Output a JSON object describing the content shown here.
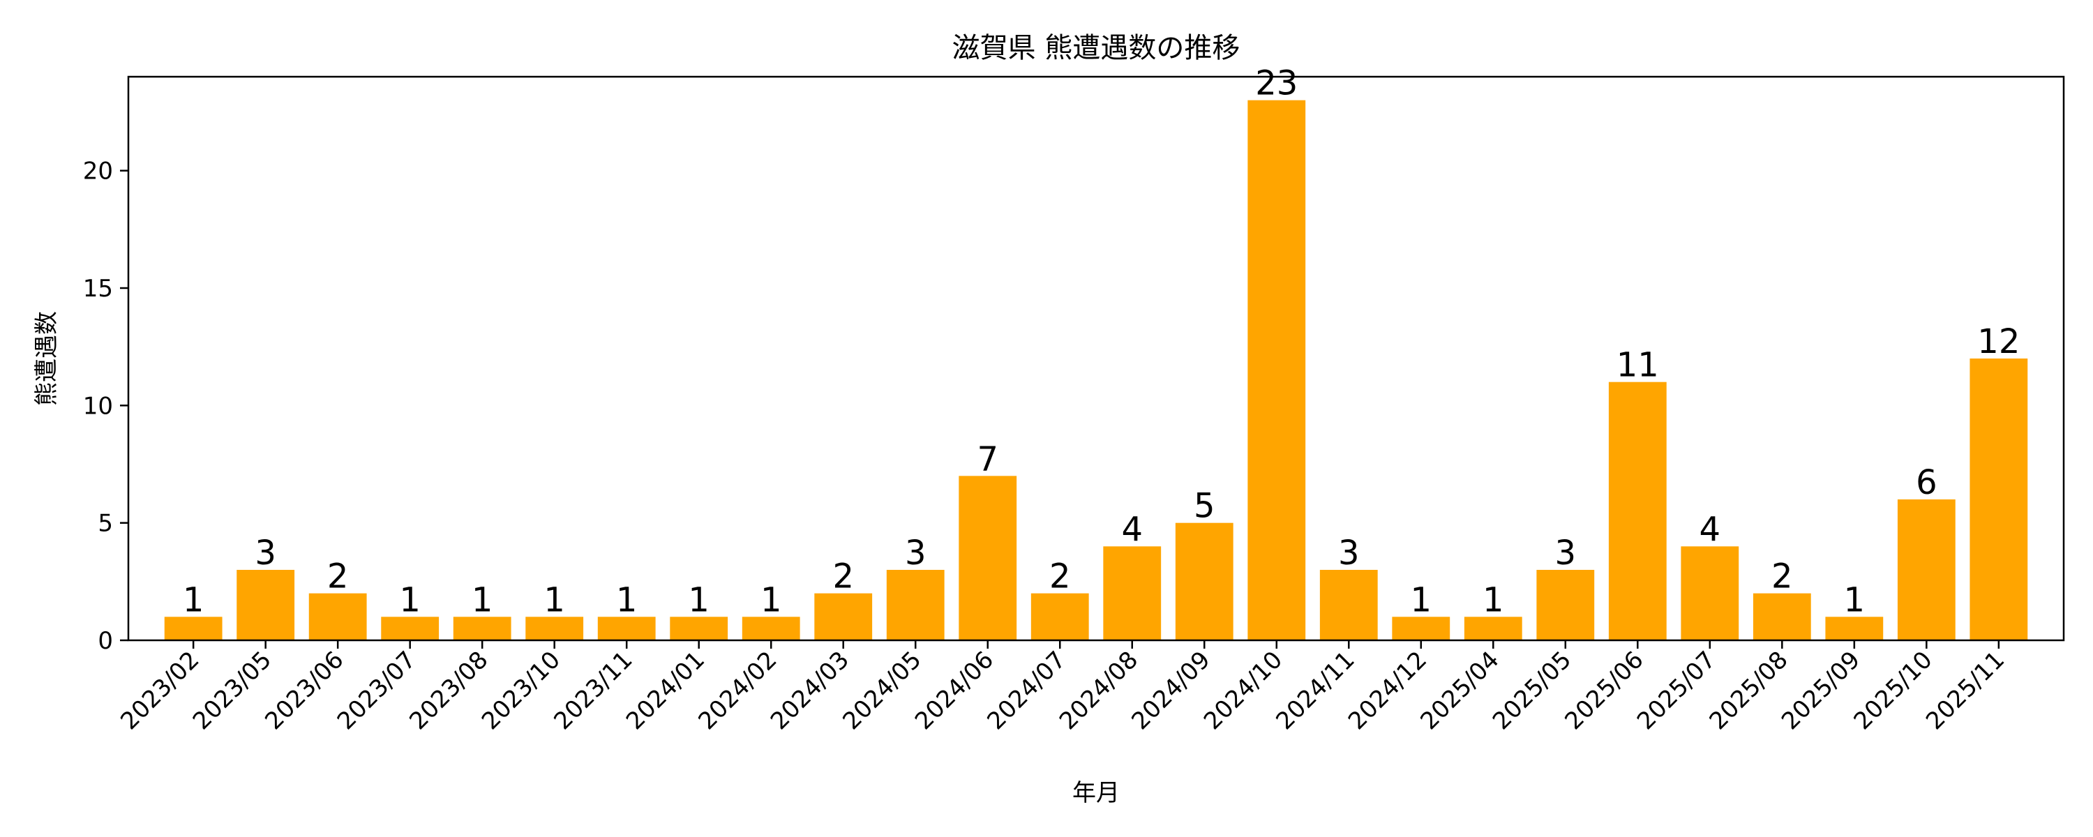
{
  "chart_data": {
    "type": "bar",
    "title": "滋賀県 熊遭遇数の推移",
    "xlabel": "年月",
    "ylabel": "熊遭遇数",
    "categories": [
      "2023/02",
      "2023/05",
      "2023/06",
      "2023/07",
      "2023/08",
      "2023/10",
      "2023/11",
      "2024/01",
      "2024/02",
      "2024/03",
      "2024/05",
      "2024/06",
      "2024/07",
      "2024/08",
      "2024/09",
      "2024/10",
      "2024/11",
      "2024/12",
      "2025/04",
      "2025/05",
      "2025/06",
      "2025/07",
      "2025/08",
      "2025/09",
      "2025/10",
      "2025/11"
    ],
    "values": [
      1,
      3,
      2,
      1,
      1,
      1,
      1,
      1,
      1,
      2,
      3,
      7,
      2,
      4,
      5,
      23,
      3,
      1,
      1,
      3,
      11,
      4,
      2,
      1,
      6,
      12
    ],
    "ylim": [
      0,
      24
    ],
    "yticks": [
      0,
      5,
      10,
      15,
      20
    ],
    "bar_color": "#FFA500",
    "grid": false,
    "legend": "none"
  }
}
